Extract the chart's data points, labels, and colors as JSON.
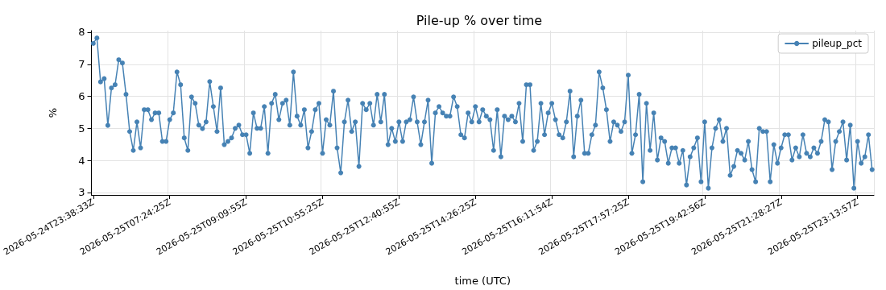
{
  "chart_data": {
    "type": "line",
    "title": "Pile-up % over time",
    "xlabel": "time (UTC)",
    "ylabel": "%",
    "categories": [
      "2026-05-24T23:38:33Z",
      null,
      null,
      null,
      null,
      null,
      null,
      null,
      null,
      null,
      null,
      null,
      null,
      null,
      null,
      null,
      null,
      null,
      null,
      null,
      null,
      "2026-05-25T07:24:25Z",
      null,
      null,
      null,
      null,
      null,
      null,
      null,
      null,
      null,
      null,
      null,
      null,
      null,
      null,
      null,
      null,
      null,
      null,
      null,
      null,
      "2026-05-25T09:09:55Z",
      null,
      null,
      null,
      null,
      null,
      null,
      null,
      null,
      null,
      null,
      null,
      null,
      null,
      null,
      null,
      null,
      null,
      null,
      null,
      null,
      "2026-05-25T10:55:25Z",
      null,
      null,
      null,
      null,
      null,
      null,
      null,
      null,
      null,
      null,
      null,
      null,
      null,
      null,
      null,
      null,
      null,
      null,
      null,
      null,
      "2026-05-25T12:40:55Z",
      null,
      null,
      null,
      null,
      null,
      null,
      null,
      null,
      null,
      null,
      null,
      null,
      null,
      null,
      null,
      null,
      null,
      null,
      null,
      null,
      "2026-05-25T14:26:25Z",
      null,
      null,
      null,
      null,
      null,
      null,
      null,
      null,
      null,
      null,
      null,
      null,
      null,
      null,
      null,
      null,
      null,
      null,
      null,
      null,
      "2026-05-25T16:11:54Z",
      null,
      null,
      null,
      null,
      null,
      null,
      null,
      null,
      null,
      null,
      null,
      null,
      null,
      null,
      null,
      null,
      null,
      null,
      null,
      null,
      "2026-05-25T17:57:25Z",
      null,
      null,
      null,
      null,
      null,
      null,
      null,
      null,
      null,
      null,
      null,
      null,
      null,
      null,
      null,
      null,
      null,
      null,
      null,
      null,
      "2026-05-25T19:42:56Z",
      null,
      null,
      null,
      null,
      null,
      null,
      null,
      null,
      null,
      null,
      null,
      null,
      null,
      null,
      null,
      null,
      null,
      null,
      null,
      null,
      "2026-05-25T21:28:27Z",
      null,
      null,
      null,
      null,
      null,
      null,
      null,
      null,
      null,
      null,
      null,
      null,
      null,
      null,
      null,
      null,
      null,
      null,
      null,
      null,
      "2026-05-25T23:13:57Z",
      null,
      null,
      null,
      null
    ],
    "series": [
      {
        "name": "pileup_pct",
        "color": "#4682b4",
        "values": [
          7.65,
          7.82,
          6.45,
          6.55,
          5.09,
          6.26,
          6.36,
          7.14,
          7.04,
          6.06,
          4.9,
          4.31,
          5.2,
          4.39,
          5.58,
          5.58,
          5.27,
          5.48,
          5.48,
          4.59,
          4.59,
          5.27,
          5.48,
          6.76,
          6.36,
          4.7,
          4.31,
          5.98,
          5.78,
          5.1,
          4.99,
          5.2,
          6.46,
          5.68,
          4.9,
          6.26,
          4.49,
          4.59,
          4.7,
          5.0,
          5.1,
          4.8,
          4.8,
          4.22,
          5.48,
          5.0,
          5.0,
          5.68,
          4.22,
          5.78,
          6.06,
          5.27,
          5.78,
          5.88,
          5.1,
          6.76,
          5.38,
          5.1,
          5.58,
          4.39,
          4.9,
          5.58,
          5.78,
          4.22,
          5.27,
          5.1,
          6.16,
          4.39,
          3.61,
          5.2,
          5.88,
          4.9,
          5.2,
          3.81,
          5.78,
          5.58,
          5.78,
          5.1,
          6.06,
          5.2,
          6.06,
          4.49,
          5.0,
          4.59,
          5.2,
          4.59,
          5.2,
          5.27,
          5.98,
          5.2,
          4.49,
          5.2,
          5.88,
          3.91,
          5.48,
          5.68,
          5.48,
          5.38,
          5.38,
          5.98,
          5.68,
          4.8,
          4.7,
          5.48,
          5.2,
          5.68,
          5.2,
          5.58,
          5.38,
          5.27,
          4.31,
          5.58,
          4.11,
          5.38,
          5.27,
          5.38,
          5.2,
          5.78,
          4.59,
          6.36,
          6.36,
          4.31,
          4.59,
          5.78,
          4.8,
          5.48,
          5.78,
          5.27,
          4.8,
          4.7,
          5.2,
          6.16,
          4.11,
          5.38,
          5.88,
          4.22,
          4.22,
          4.8,
          5.1,
          6.76,
          6.26,
          5.58,
          4.59,
          5.2,
          5.1,
          4.9,
          5.2,
          6.66,
          4.22,
          4.8,
          6.06,
          3.33,
          5.78,
          4.31,
          5.48,
          4.01,
          4.7,
          4.59,
          3.91,
          4.39,
          4.39,
          3.91,
          4.31,
          3.23,
          4.11,
          4.39,
          4.7,
          3.33,
          5.2,
          3.13,
          4.39,
          5.0,
          5.27,
          4.59,
          5.0,
          3.53,
          3.81,
          4.31,
          4.22,
          4.01,
          4.59,
          3.71,
          3.33,
          5.0,
          4.9,
          4.9,
          3.33,
          4.49,
          3.91,
          4.39,
          4.8,
          4.8,
          4.01,
          4.39,
          4.11,
          4.8,
          4.22,
          4.11,
          4.39,
          4.22,
          4.59,
          5.27,
          5.2,
          3.71,
          4.59,
          4.9,
          5.2,
          4.01,
          5.1,
          3.13,
          4.59,
          3.91,
          4.11,
          4.8,
          3.71
        ]
      }
    ],
    "ylim": [
      2.92,
      8.05
    ],
    "yticks": [
      3,
      4,
      5,
      6,
      7,
      8
    ],
    "grid": true,
    "legend": "top right",
    "marker": "circle",
    "line_style": "solid"
  }
}
